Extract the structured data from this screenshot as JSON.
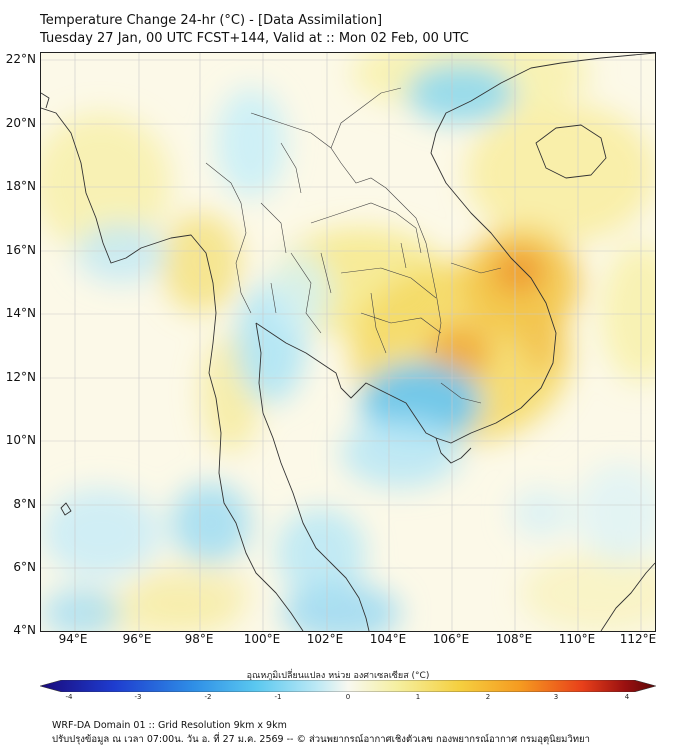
{
  "header": {
    "title_line1": "Temperature Change 24-hr (°C) - [Data Assimilation]",
    "title_line2": "Tuesday 27 Jan, 00 UTC FCST+144, Valid at :: Mon 02 Feb, 00 UTC"
  },
  "map": {
    "variable": "Temperature Change 24-hr",
    "unit": "°C",
    "lat_labels": [
      "22°N",
      "20°N",
      "18°N",
      "16°N",
      "14°N",
      "12°N",
      "10°N",
      "8°N",
      "6°N",
      "4°N"
    ],
    "lon_labels": [
      "94°E",
      "96°E",
      "98°E",
      "100°E",
      "102°E",
      "104°E",
      "106°E",
      "108°E",
      "110°E",
      "112°E"
    ],
    "background_color": "#fcf9e6",
    "coastline_color": "#333333"
  },
  "colorbar": {
    "caption": "อุณหภูมิเปลี่ยนแปลง หน่วย องศาเซลเซียส (°C)",
    "ticks": [
      "-4",
      "-3",
      "-2",
      "-1",
      "0",
      "1",
      "2",
      "3",
      "4"
    ],
    "min": -4,
    "max": 4,
    "colors": [
      "#1a0a7a",
      "#1e3ccf",
      "#2f8fe6",
      "#5ac8f0",
      "#bde9f5",
      "#f8f8f0",
      "#f5efa0",
      "#f5d040",
      "#f59a20",
      "#e8401a",
      "#9a1010",
      "#5a0808"
    ]
  },
  "footer": {
    "line1": "WRF-DA Domain 01 :: Grid Resolution 9km x 9km",
    "line2": "ปรับปรุงข้อมูล ณ เวลา 07:00น. วัน อ. ที่ 27 ม.ค. 2569 -- © ส่วนพยากรณ์อากาศเชิงตัวเลข กองพยากรณ์อากาศ กรมอุตุนิยมวิทยา"
  }
}
